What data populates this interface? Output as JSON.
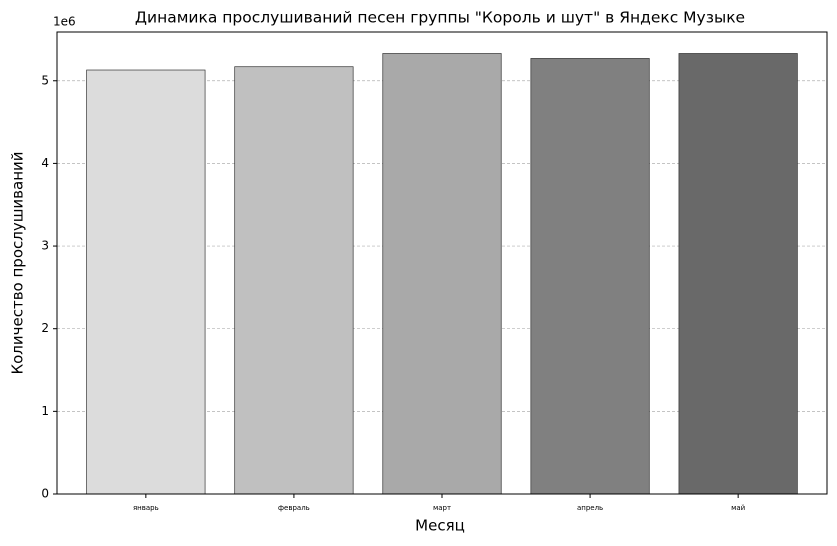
{
  "chart_data": {
    "type": "bar",
    "title": "Динамика прослушиваний песен группы \"Король и шут\" в Яндекс Музыке",
    "x_label": "Месяц",
    "y_label": "Количество прослушиваний",
    "y_offset_label": "1e6",
    "categories": [
      "январь",
      "февраль",
      "март",
      "апрель",
      "май"
    ],
    "values": [
      5.13,
      5.17,
      5.33,
      5.27,
      5.33
    ],
    "colors": [
      "#dcdcdc",
      "#c0c0c0",
      "#a9a9a9",
      "#808080",
      "#696969"
    ],
    "ylim": [
      0,
      5.59
    ],
    "yticks": [
      0,
      1,
      2,
      3,
      4,
      5
    ],
    "grid": true
  }
}
